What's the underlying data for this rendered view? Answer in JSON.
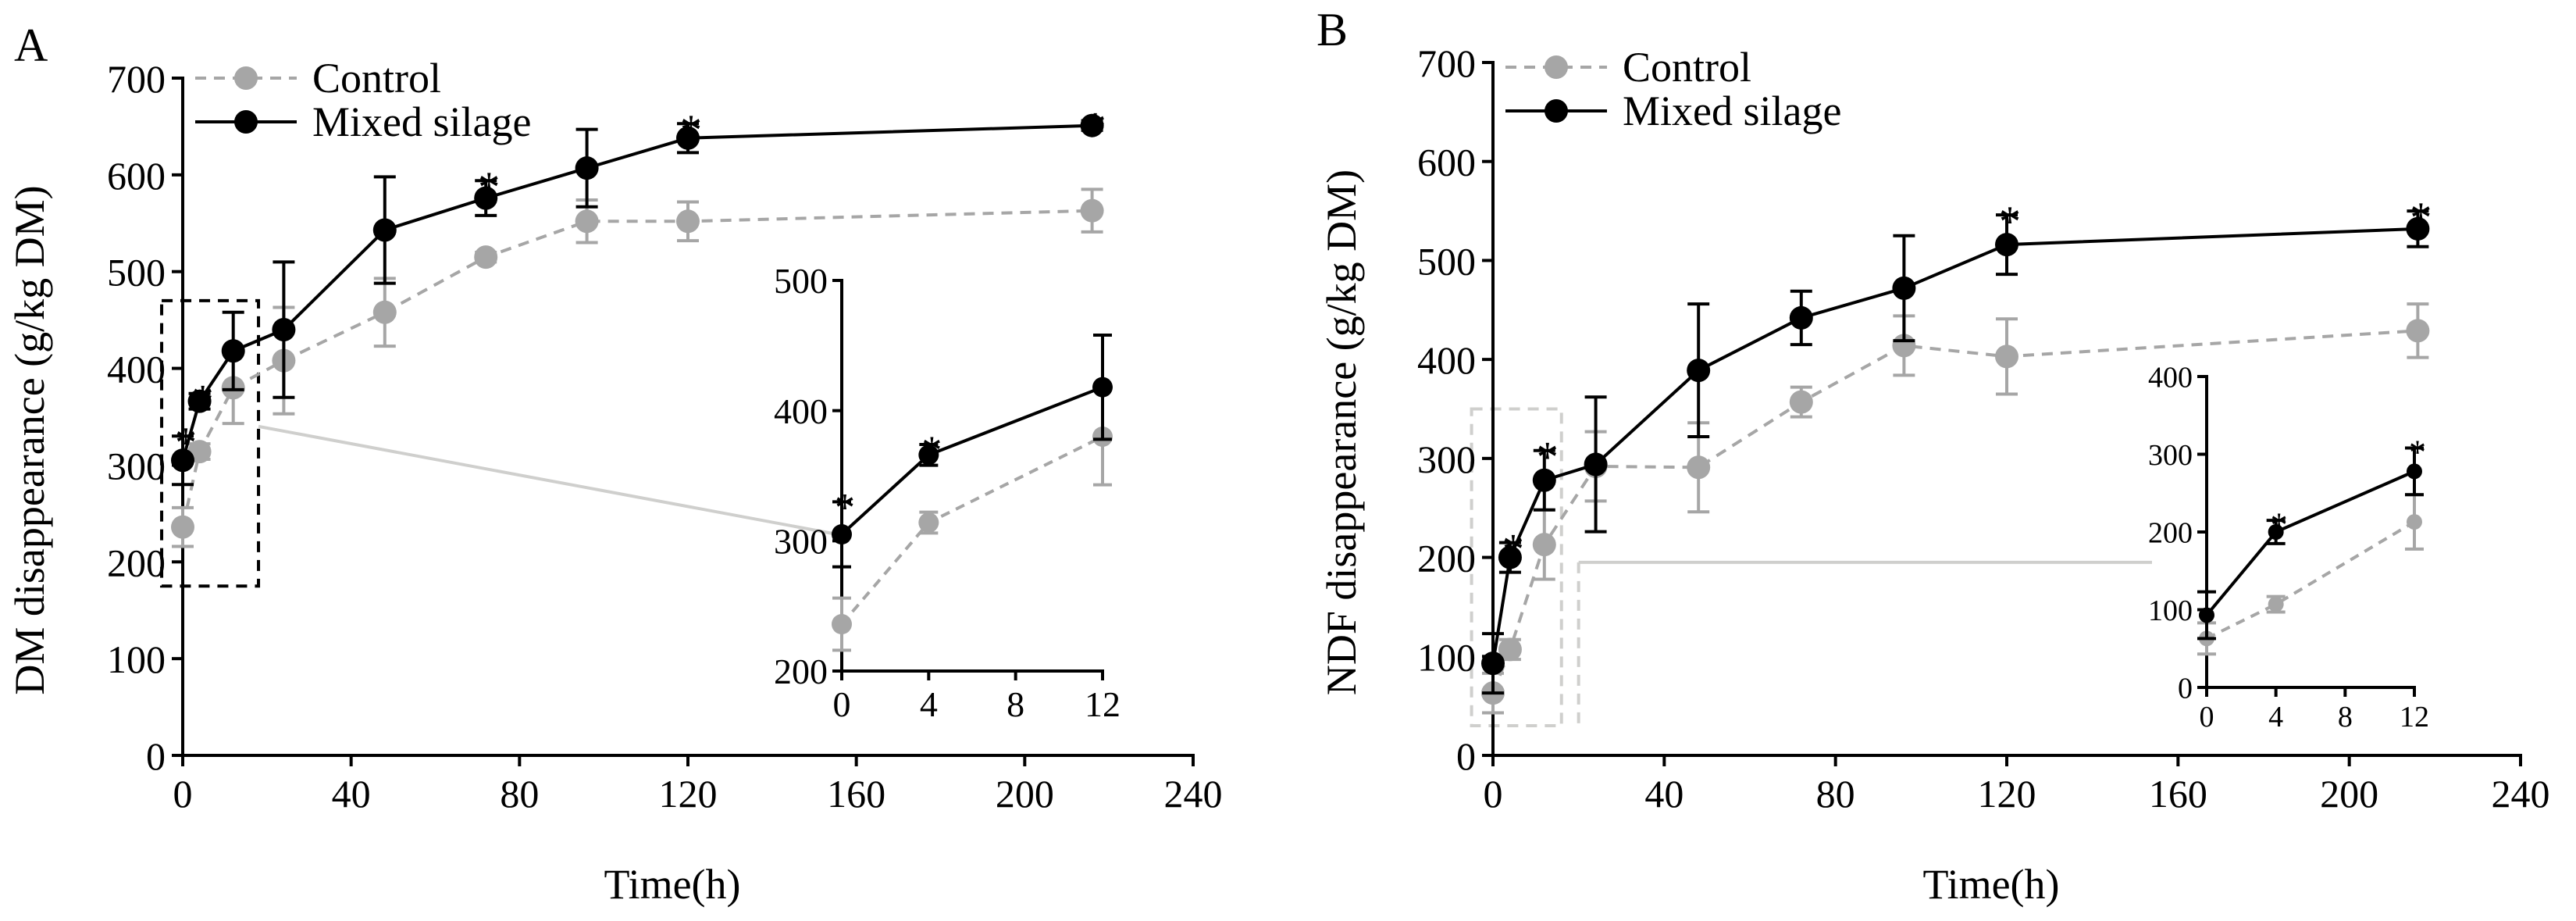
{
  "chart_data": [
    {
      "panel_label": "A",
      "type": "line",
      "ylabel": "DM disappearance (g/kg DM)",
      "xlabel": "Time(h)",
      "xlim": [
        0,
        240
      ],
      "ylim": [
        0,
        700
      ],
      "xticks": [
        "0",
        "40",
        "80",
        "120",
        "160",
        "200",
        "240"
      ],
      "yticks": [
        "0",
        "100",
        "200",
        "300",
        "400",
        "500",
        "600",
        "700"
      ],
      "legend": {
        "position": "top-left",
        "entries": [
          "Control",
          "Mixed silage"
        ]
      },
      "x": [
        0,
        4,
        12,
        24,
        48,
        72,
        96,
        120,
        216
      ],
      "series": [
        {
          "name": "Control",
          "color": "#a6a6a6",
          "dashed": true,
          "values": [
            236,
            314,
            380,
            408,
            458,
            515,
            552,
            552,
            563
          ],
          "errors": [
            20,
            8,
            37,
            55,
            35,
            5,
            22,
            20,
            22
          ]
        },
        {
          "name": "Mixed silage",
          "color": "#000000",
          "dashed": false,
          "values": [
            305,
            366,
            418,
            440,
            543,
            576,
            607,
            638,
            651
          ],
          "errors": [
            25,
            8,
            40,
            70,
            55,
            18,
            40,
            15,
            5
          ]
        }
      ],
      "significance_markers": [
        {
          "x": 0,
          "label": "*"
        },
        {
          "x": 4,
          "label": "*"
        },
        {
          "x": 72,
          "label": "*"
        },
        {
          "x": 120,
          "label": "*"
        },
        {
          "x": 216,
          "label": "*"
        }
      ],
      "inset": {
        "xlim": [
          0,
          12
        ],
        "ylim": [
          200,
          500
        ],
        "xticks": [
          "0",
          "4",
          "8",
          "12"
        ],
        "yticks": [
          "200",
          "300",
          "400",
          "500"
        ],
        "zoom_box": {
          "x": [
            -5,
            18
          ],
          "y": [
            175,
            470
          ]
        },
        "significance_markers": [
          {
            "x": 0,
            "label": "*"
          },
          {
            "x": 4,
            "label": "*"
          }
        ]
      }
    },
    {
      "panel_label": "B",
      "type": "line",
      "ylabel": "NDF disappearance (g/kg DM)",
      "xlabel": "Time(h)",
      "xlim": [
        0,
        240
      ],
      "ylim": [
        0,
        700
      ],
      "xticks": [
        "0",
        "40",
        "80",
        "120",
        "160",
        "200",
        "240"
      ],
      "yticks": [
        "0",
        "100",
        "200",
        "300",
        "400",
        "500",
        "600",
        "700"
      ],
      "legend": {
        "position": "top-left",
        "entries": [
          "Control",
          "Mixed silage"
        ]
      },
      "x": [
        0,
        4,
        12,
        24,
        48,
        72,
        96,
        120,
        216
      ],
      "series": [
        {
          "name": "Control",
          "color": "#a6a6a6",
          "dashed": true,
          "values": [
            63,
            107,
            213,
            292,
            291,
            357,
            414,
            403,
            429
          ],
          "errors": [
            20,
            10,
            35,
            35,
            45,
            15,
            30,
            38,
            27
          ]
        },
        {
          "name": "Mixed silage",
          "color": "#000000",
          "dashed": false,
          "values": [
            93,
            200,
            278,
            294,
            389,
            442,
            472,
            516,
            532
          ],
          "errors": [
            30,
            15,
            30,
            68,
            67,
            27,
            53,
            30,
            18
          ]
        }
      ],
      "significance_markers": [
        {
          "x": 4,
          "label": "*"
        },
        {
          "x": 12,
          "label": "*"
        },
        {
          "x": 120,
          "label": "*"
        },
        {
          "x": 216,
          "label": "*"
        }
      ],
      "inset": {
        "xlim": [
          0,
          12
        ],
        "ylim": [
          0,
          400
        ],
        "xticks": [
          "0",
          "4",
          "8",
          "12"
        ],
        "yticks": [
          "0",
          "100",
          "200",
          "300",
          "400"
        ],
        "zoom_box": {
          "x": [
            -5,
            16
          ],
          "y": [
            30,
            350
          ]
        },
        "significance_markers": [
          {
            "x": 4,
            "label": "*"
          },
          {
            "x": 12,
            "label": "*"
          }
        ]
      }
    }
  ]
}
